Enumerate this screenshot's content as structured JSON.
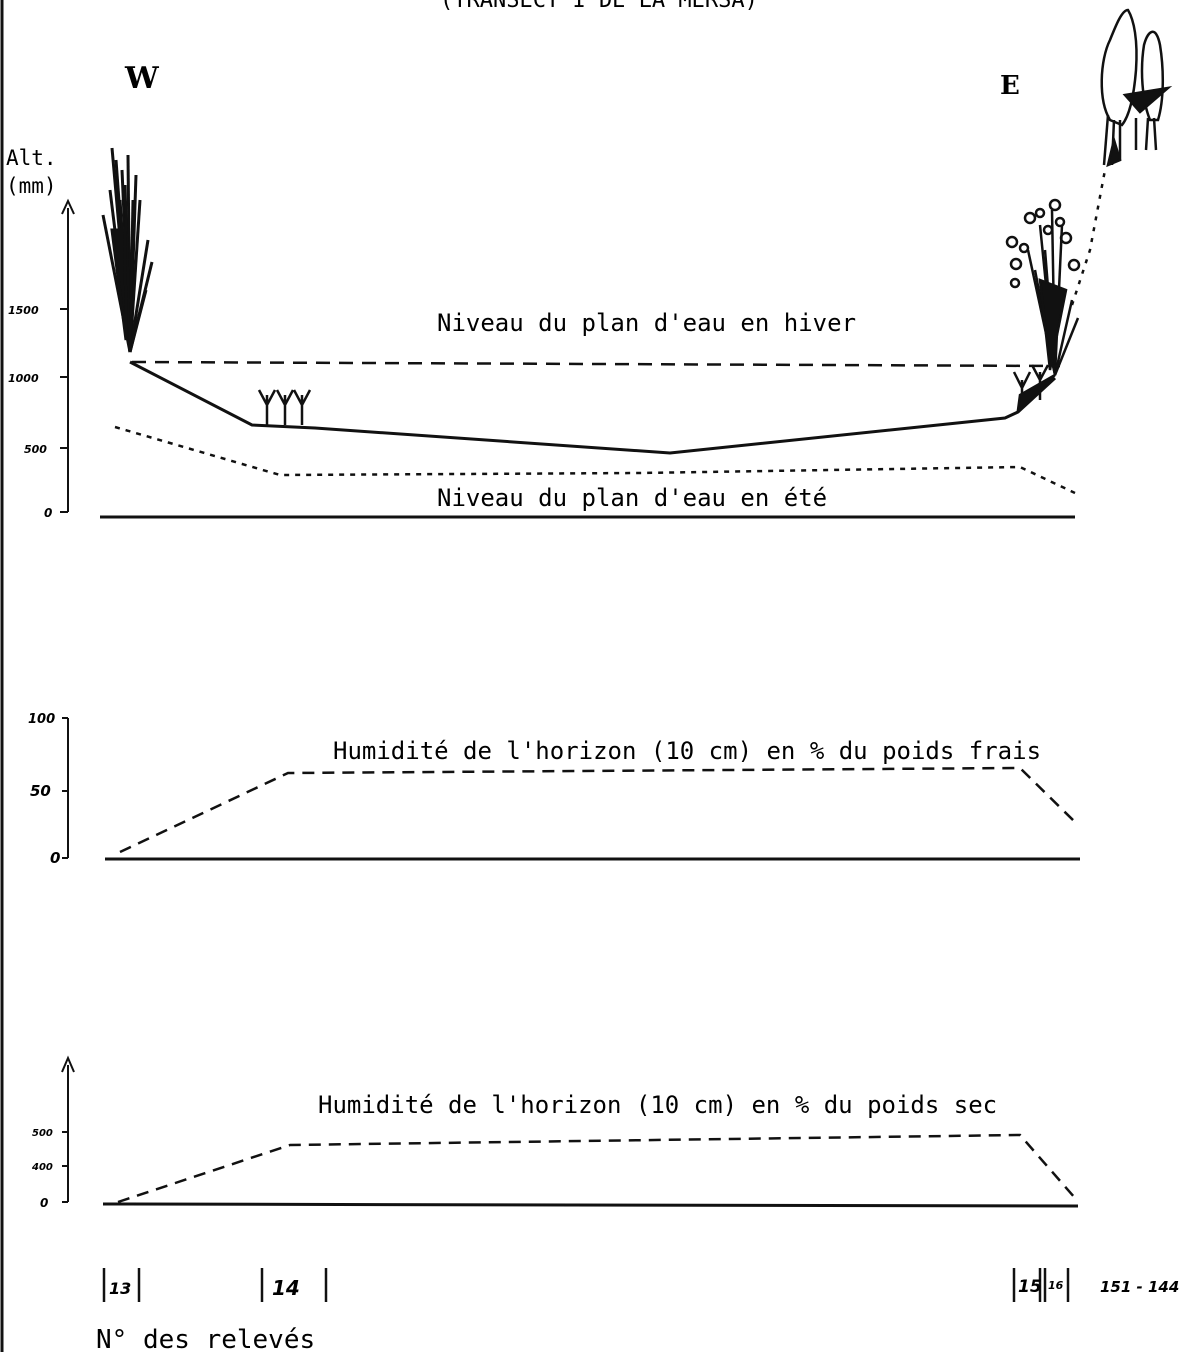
{
  "header": {
    "title": "(TRANSECT I DE LA MERSA)"
  },
  "orientation": {
    "west": "W",
    "east": "E"
  },
  "profile": {
    "axis_label_1": "Alt.",
    "axis_label_2": "(mm)",
    "ticks": [
      "1500",
      "1000",
      "500",
      "0"
    ],
    "winter_label": "Niveau  du plan d'eau en hiver",
    "summer_label": "Niveau du plan d'eau en été"
  },
  "fresh_humidity": {
    "ticks": [
      "100",
      "50",
      "0"
    ],
    "label": "Humidité de l'horizon (10 cm) en % du poids frais"
  },
  "dry_humidity": {
    "ticks": [
      "500",
      "400",
      "0"
    ],
    "label": "Humidité de l'horizon (10 cm) en % du poids sec"
  },
  "releves": {
    "markers": [
      "13",
      "14",
      "15",
      "16",
      "151 - 144"
    ],
    "caption": "N° des relevés"
  }
}
